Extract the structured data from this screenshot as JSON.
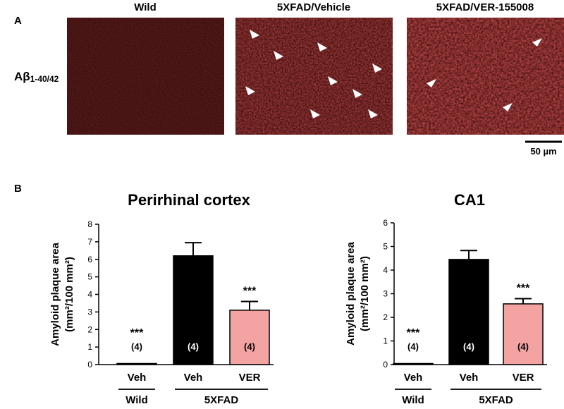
{
  "panel_a": {
    "letter": "A",
    "row_label": "Aβ",
    "row_label_sub": "1-40/42",
    "images": [
      {
        "title": "Wild"
      },
      {
        "title": "5XFAD/Vehicle"
      },
      {
        "title": "5XFAD/VER-155008"
      }
    ],
    "scale_bar_label": "50 µm"
  },
  "panel_b": {
    "letter": "B"
  },
  "chart_data": [
    {
      "type": "bar",
      "title": "Perirhinal cortex",
      "ylabel_line1": "Amyloid plaque area",
      "ylabel_line2": "(mm²/100 mm²)",
      "ylim": [
        0,
        8
      ],
      "yticks": [
        "0",
        "1",
        "2",
        "3",
        "4",
        "5",
        "6",
        "7",
        "8"
      ],
      "categories": [
        "Veh",
        "Veh",
        "VER"
      ],
      "groups": [
        "Wild",
        "5XFAD"
      ],
      "values": [
        0.03,
        6.2,
        3.1
      ],
      "errors": [
        0,
        0.75,
        0.5
      ],
      "n_labels": [
        "(4)",
        "(4)",
        "(4)"
      ],
      "significance": [
        "***",
        "",
        "***"
      ],
      "colors": [
        "#000000",
        "#000000",
        "#f4a3a3"
      ]
    },
    {
      "type": "bar",
      "title": "CA1",
      "ylabel_line1": "Amyloid plaque area",
      "ylabel_line2": "(mm²/100 mm²)",
      "ylim": [
        0,
        6
      ],
      "yticks": [
        "0",
        "1",
        "2",
        "3",
        "4",
        "5",
        "6"
      ],
      "categories": [
        "Veh",
        "Veh",
        "VER"
      ],
      "groups": [
        "Wild",
        "5XFAD"
      ],
      "values": [
        0.03,
        4.45,
        2.57
      ],
      "errors": [
        0,
        0.38,
        0.22
      ],
      "n_labels": [
        "(4)",
        "(4)",
        "(4)"
      ],
      "significance": [
        "***",
        "",
        "***"
      ],
      "colors": [
        "#000000",
        "#000000",
        "#f4a3a3"
      ]
    }
  ]
}
